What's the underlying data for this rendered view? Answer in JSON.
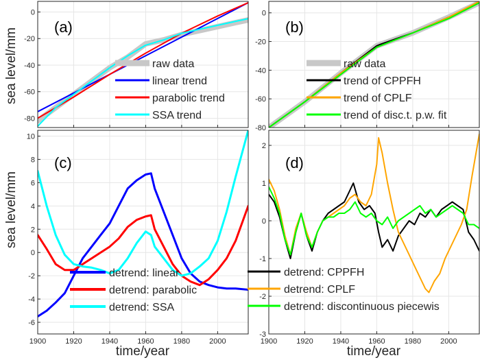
{
  "figure": {
    "xlabel": "time/year",
    "ylabel": "sea level/mm",
    "xlim": [
      1900,
      2017
    ],
    "xticks": [
      1900,
      1920,
      1940,
      1960,
      1980,
      2000
    ],
    "grid": true
  },
  "chart_data": [
    {
      "id": "a",
      "label": "(a)",
      "type": "line",
      "xlim": [
        1900,
        2017
      ],
      "ylim": [
        -87,
        8
      ],
      "yticks": [
        -80,
        -60,
        -40,
        -20,
        0
      ],
      "show_xticklabels": false,
      "show_ylabel": true,
      "legend_placement": "bottom-right",
      "series": [
        {
          "name": "raw data",
          "color": "#c8c8c8",
          "width": 8,
          "x": [
            1900,
            1910,
            1920,
            1930,
            1940,
            1950,
            1960,
            1970,
            1980,
            1990,
            2000,
            2010,
            2017
          ],
          "y": [
            -82,
            -72,
            -62,
            -52,
            -42,
            -34,
            -24,
            -21,
            -17,
            -14,
            -11,
            -8,
            -6
          ]
        },
        {
          "name": "linear trend",
          "color": "#0000ff",
          "width": 2,
          "x": [
            1900,
            2017
          ],
          "y": [
            -75,
            7
          ]
        },
        {
          "name": "parabolic trend",
          "color": "#ff0000",
          "width": 2,
          "x": [
            1900,
            1920,
            1940,
            1960,
            1980,
            2000,
            2017
          ],
          "y": [
            -80,
            -64,
            -47,
            -31,
            -16,
            -3,
            7
          ]
        },
        {
          "name": "SSA trend",
          "color": "#00ffff",
          "width": 2,
          "x": [
            1900,
            1910,
            1920,
            1930,
            1940,
            1950,
            1960,
            1970,
            1980,
            1990,
            2000,
            2010,
            2017
          ],
          "y": [
            -86,
            -72,
            -62,
            -52,
            -42,
            -33,
            -25,
            -21,
            -16,
            -13,
            -10,
            -7,
            -5
          ]
        }
      ]
    },
    {
      "id": "b",
      "label": "(b)",
      "type": "line",
      "xlim": [
        1900,
        2017
      ],
      "ylim": [
        -80,
        8
      ],
      "yticks": [
        -80,
        -60,
        -40,
        -20,
        0
      ],
      "show_xticklabels": false,
      "show_ylabel": false,
      "legend_placement": "bottom-right",
      "series": [
        {
          "name": "raw data",
          "color": "#c8c8c8",
          "width": 8,
          "x": [
            1900,
            1920,
            1940,
            1960,
            1980,
            2000,
            2017
          ],
          "y": [
            -80,
            -62,
            -42,
            -23,
            -14,
            -3,
            7
          ]
        },
        {
          "name": "trend of CPPFH",
          "color": "#000000",
          "width": 2,
          "x": [
            1900,
            1920,
            1940,
            1960,
            1962,
            1980,
            2000,
            2017
          ],
          "y": [
            -80,
            -62,
            -42,
            -23,
            -22,
            -14,
            -3,
            7
          ]
        },
        {
          "name": "trend of CPLF",
          "color": "#ffa500",
          "width": 2,
          "x": [
            1900,
            1920,
            1940,
            1960,
            1980,
            2000,
            2017
          ],
          "y": [
            -80,
            -62,
            -42,
            -24,
            -14,
            -3,
            8
          ]
        },
        {
          "name": "trend of disc.t. p.w. fit",
          "color": "#00ff00",
          "width": 2,
          "x": [
            1900,
            1920,
            1940,
            1960,
            1980,
            2000,
            2017
          ],
          "y": [
            -80,
            -62,
            -43,
            -24,
            -14,
            -4,
            7
          ]
        }
      ]
    },
    {
      "id": "c",
      "label": "(c)",
      "type": "line",
      "xlim": [
        1900,
        2017
      ],
      "ylim": [
        -7,
        10.5
      ],
      "yticks": [
        -6,
        -4,
        -2,
        0,
        2,
        4,
        6,
        8,
        10
      ],
      "show_xticklabels": true,
      "show_ylabel": true,
      "legend_placement": "bottom-right",
      "series": [
        {
          "name": "detrend: linear",
          "color": "#0000ff",
          "width": 3,
          "x": [
            1900,
            1905,
            1910,
            1915,
            1920,
            1925,
            1930,
            1935,
            1940,
            1945,
            1950,
            1955,
            1960,
            1963,
            1965,
            1970,
            1975,
            1980,
            1985,
            1990,
            1995,
            2000,
            2005,
            2010,
            2017
          ],
          "y": [
            -5.5,
            -5,
            -4.3,
            -3.5,
            -2,
            -0.5,
            0.5,
            1.5,
            2.5,
            4,
            5.5,
            6.2,
            6.7,
            6.8,
            5.5,
            3.5,
            1.5,
            -0.5,
            -1.8,
            -2.5,
            -2.8,
            -3,
            -3.1,
            -3.1,
            -3.2
          ]
        },
        {
          "name": "detrend: parabolic",
          "color": "#ff0000",
          "width": 3,
          "x": [
            1900,
            1905,
            1910,
            1915,
            1920,
            1925,
            1930,
            1935,
            1940,
            1945,
            1950,
            1955,
            1960,
            1963,
            1965,
            1970,
            1975,
            1980,
            1985,
            1990,
            1995,
            2000,
            2005,
            2010,
            2017
          ],
          "y": [
            1.5,
            0.3,
            -1,
            -1.5,
            -1.5,
            -1,
            -0.5,
            0,
            0.5,
            1.2,
            2.2,
            2.8,
            3.1,
            3.2,
            2,
            0.5,
            -1,
            -2,
            -2.5,
            -2.8,
            -2.3,
            -1.5,
            -0.5,
            1,
            4
          ]
        },
        {
          "name": "detrend: SSA",
          "color": "#00ffff",
          "width": 3,
          "x": [
            1900,
            1905,
            1910,
            1915,
            1920,
            1925,
            1930,
            1935,
            1940,
            1945,
            1950,
            1955,
            1960,
            1963,
            1965,
            1970,
            1975,
            1980,
            1985,
            1990,
            1995,
            2000,
            2005,
            2010,
            2017
          ],
          "y": [
            7,
            4,
            1.5,
            -0.2,
            -1,
            -1.2,
            -1.3,
            -1.5,
            -1.8,
            -1.5,
            -0.5,
            0.8,
            1.8,
            1.5,
            0.5,
            -0.5,
            -1.5,
            -2,
            -1.8,
            -1.2,
            -0.5,
            1,
            3.5,
            6.5,
            10.5
          ]
        }
      ]
    },
    {
      "id": "d",
      "label": "(d)",
      "type": "line",
      "xlim": [
        1900,
        2017
      ],
      "ylim": [
        -3,
        2.4
      ],
      "yticks": [
        -3,
        -2,
        -1,
        0,
        1,
        2
      ],
      "show_xticklabels": true,
      "show_ylabel": false,
      "legend_placement": "bottom-right",
      "series": [
        {
          "name": "detrend: CPPFH",
          "color": "#000000",
          "width": 2,
          "x": [
            1900,
            1903,
            1906,
            1909,
            1912,
            1915,
            1918,
            1921,
            1924,
            1927,
            1930,
            1933,
            1936,
            1939,
            1942,
            1945,
            1947,
            1950,
            1953,
            1956,
            1959,
            1961,
            1963,
            1966,
            1969,
            1972,
            1975,
            1978,
            1981,
            1984,
            1987,
            1990,
            1993,
            1996,
            1999,
            2002,
            2005,
            2008,
            2011,
            2014,
            2017
          ],
          "y": [
            0.7,
            0.5,
            0.1,
            -0.5,
            -1.0,
            -0.3,
            0.2,
            -0.4,
            -0.8,
            -0.3,
            0.0,
            0.2,
            0.3,
            0.4,
            0.5,
            0.8,
            1.0,
            0.5,
            0.3,
            0.4,
            0.2,
            -0.3,
            -0.7,
            -0.5,
            -0.8,
            -0.4,
            -0.2,
            0.0,
            -0.1,
            0.2,
            0.1,
            0.3,
            0.1,
            0.3,
            0.4,
            0.5,
            0.4,
            0.3,
            -0.3,
            -0.5,
            -0.8
          ]
        },
        {
          "name": "detrend: CPLF",
          "color": "#ffa500",
          "width": 2,
          "x": [
            1900,
            1903,
            1906,
            1909,
            1912,
            1915,
            1918,
            1921,
            1924,
            1927,
            1930,
            1933,
            1936,
            1939,
            1942,
            1945,
            1948,
            1951,
            1954,
            1957,
            1960,
            1961,
            1963,
            1966,
            1969,
            1972,
            1975,
            1978,
            1981,
            1984,
            1987,
            1989,
            1992,
            1995,
            1998,
            2001,
            2004,
            2007,
            2010,
            2013,
            2017
          ],
          "y": [
            1.1,
            0.8,
            0.3,
            -0.4,
            -0.9,
            -0.2,
            0.2,
            -0.3,
            -0.7,
            -0.3,
            0.0,
            0.1,
            0.2,
            0.3,
            0.4,
            0.6,
            0.7,
            0.5,
            0.4,
            0.7,
            1.5,
            2.2,
            1.8,
            1.0,
            0.3,
            -0.3,
            -0.6,
            -0.9,
            -1.2,
            -1.5,
            -1.8,
            -1.9,
            -1.6,
            -1.4,
            -1.0,
            -0.7,
            -0.4,
            -0.1,
            0.3,
            1.2,
            2.3
          ]
        },
        {
          "name": "detrend: discontinuous piecewis",
          "color": "#00ff00",
          "width": 2,
          "x": [
            1900,
            1903,
            1906,
            1909,
            1912,
            1915,
            1918,
            1921,
            1924,
            1927,
            1930,
            1933,
            1936,
            1939,
            1942,
            1945,
            1948,
            1951,
            1954,
            1957,
            1960,
            1963,
            1966,
            1969,
            1972,
            1975,
            1978,
            1981,
            1984,
            1987,
            1990,
            1993,
            1996,
            1999,
            2002,
            2005,
            2008,
            2011,
            2014,
            2017
          ],
          "y": [
            0.9,
            0.6,
            0.2,
            -0.5,
            -0.9,
            -0.3,
            0.2,
            -0.4,
            -0.7,
            -0.3,
            0.0,
            0.1,
            0.1,
            0.2,
            0.2,
            0.3,
            0.5,
            0.2,
            0.1,
            0.2,
            0.0,
            -0.1,
            0.1,
            -0.2,
            0.0,
            0.1,
            0.2,
            0.3,
            0.4,
            0.2,
            0.3,
            0.1,
            0.2,
            0.3,
            0.4,
            0.3,
            0.2,
            -0.1,
            -0.1,
            -0.2
          ]
        }
      ]
    }
  ]
}
